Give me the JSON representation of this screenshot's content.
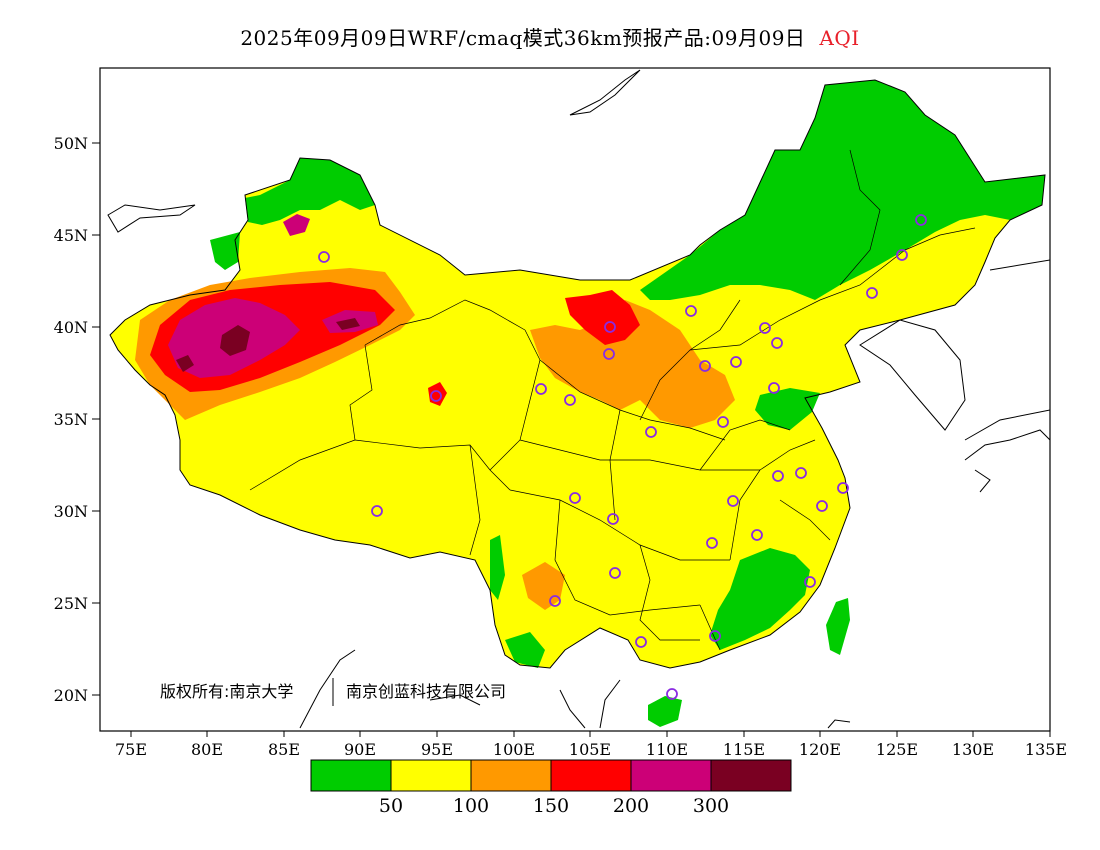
{
  "title": {
    "main": "2025年09月09日WRF/cmaq模式36km预报产品:09月09日",
    "variable": "AQI"
  },
  "axes": {
    "x_ticks": [
      "75E",
      "80E",
      "85E",
      "90E",
      "95E",
      "100E",
      "105E",
      "110E",
      "115E",
      "120E",
      "125E",
      "130E",
      "135E"
    ],
    "y_ticks": [
      "50N",
      "45N",
      "40N",
      "35N",
      "30N",
      "25N",
      "20N"
    ],
    "lon_range": [
      73,
      135
    ],
    "lat_range": [
      18,
      54
    ]
  },
  "copyright": {
    "text_a": "版权所有:南京大学",
    "text_b": "南京创蓝科技有限公司"
  },
  "legend": {
    "colors": [
      "#00cc00",
      "#ffff00",
      "#ff9900",
      "#ff0000",
      "#cc0077",
      "#7a0022"
    ],
    "labels": [
      "50",
      "100",
      "150",
      "200",
      "300"
    ]
  },
  "chart_data": {
    "type": "heatmap",
    "variable": "AQI",
    "bins": [
      {
        "range": "0-50",
        "color": "#00cc00"
      },
      {
        "range": "50-100",
        "color": "#ffff00"
      },
      {
        "range": "100-150",
        "color": "#ff9900"
      },
      {
        "range": "150-200",
        "color": "#ff0000"
      },
      {
        "range": "200-300",
        "color": "#cc0077"
      },
      {
        "range": ">300",
        "color": "#7a0022"
      }
    ]
  }
}
